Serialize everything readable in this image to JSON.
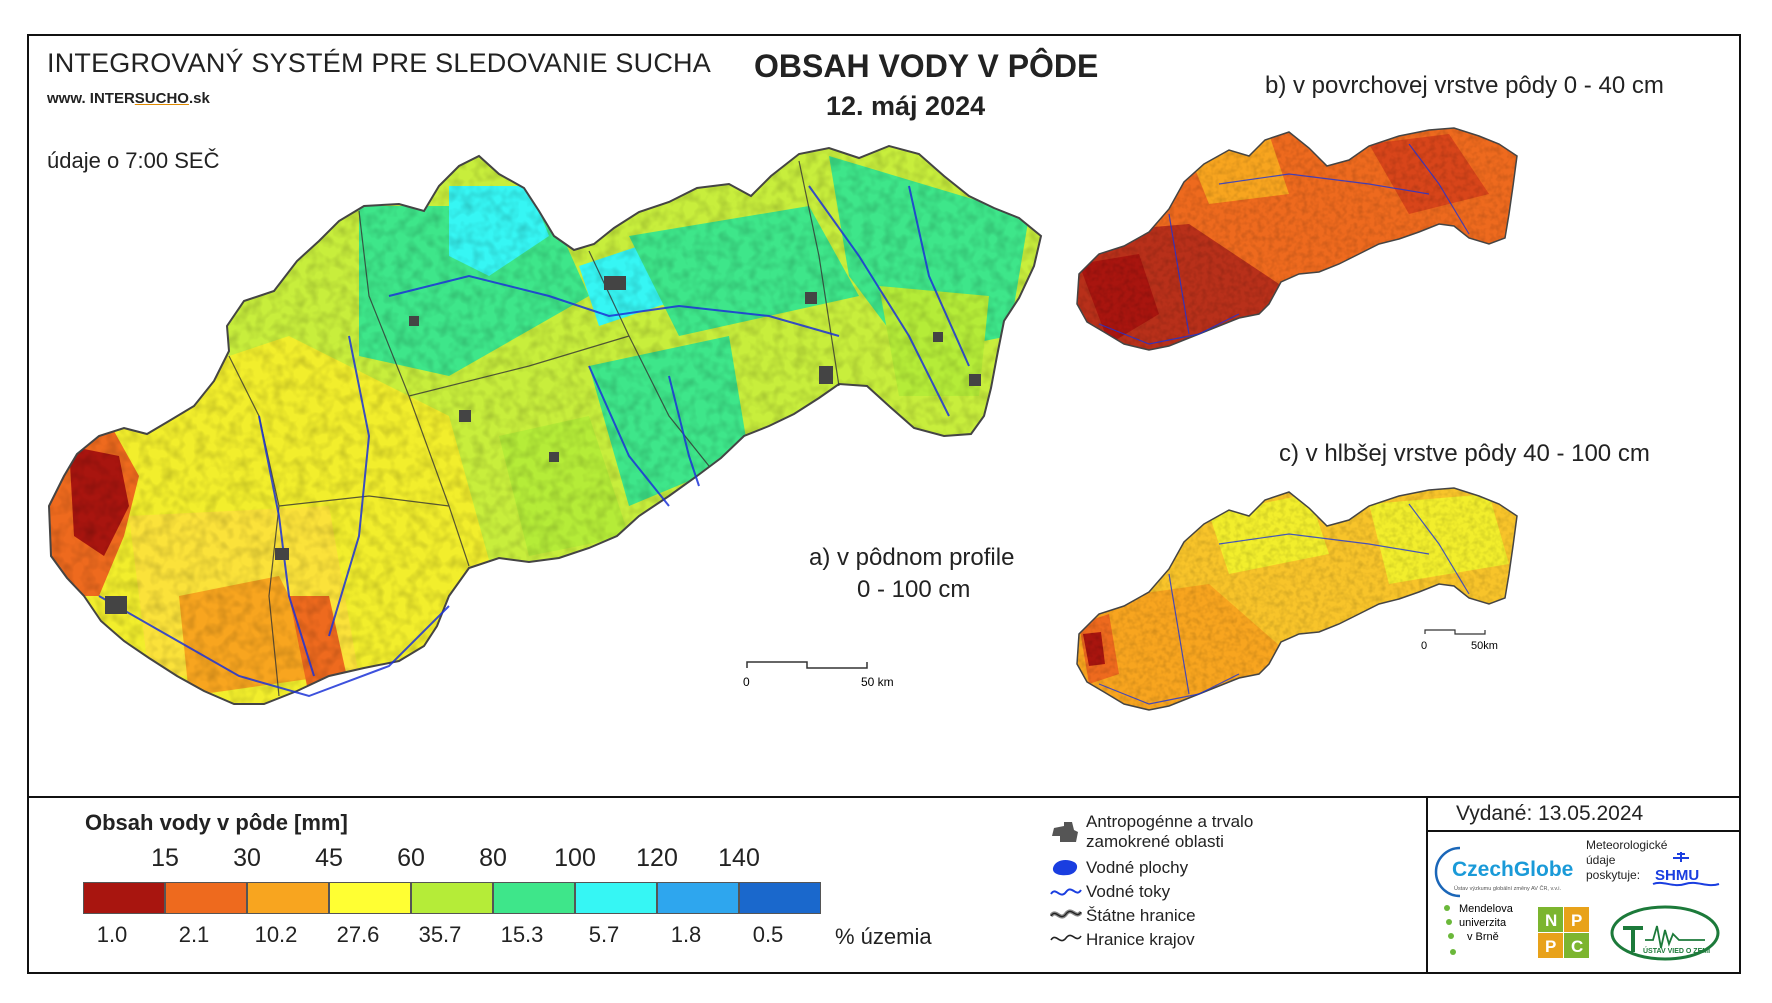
{
  "header": {
    "system_title": "INTEGROVANÝ SYSTÉM PRE SLEDOVANIE SUCHA",
    "website_prefix": "www. INTER",
    "website_mid": "SUCHO",
    "website_suffix": ".sk",
    "data_time": "údaje o 7:00 SEČ",
    "map_title": "OBSAH VODY V PÔDE",
    "map_date": "12. máj 2024"
  },
  "maps": {
    "a_label_line1": "a) v pôdnom profile",
    "a_label_line2": "0 - 100 cm",
    "b_label": "b) v povrchovej vrstve pôdy 0 - 40 cm",
    "c_label": "c) v hlbšej vrstve pôdy 40 - 100 cm",
    "scale_main_start": "0",
    "scale_main_end": "50 km",
    "scale_small_start": "0",
    "scale_small_end": "50km"
  },
  "legend": {
    "title": "Obsah vody v pôde  [mm]",
    "thresholds": [
      "15",
      "30",
      "45",
      "60",
      "80",
      "100",
      "120",
      "140"
    ],
    "classes": [
      {
        "color": "#a8150f",
        "percent": "1.0"
      },
      {
        "color": "#ee6a1e",
        "percent": "2.1"
      },
      {
        "color": "#f8a51f",
        "percent": "10.2"
      },
      {
        "color": "#ffff33",
        "percent": "27.6"
      },
      {
        "color": "#b5ec38",
        "percent": "35.7"
      },
      {
        "color": "#3ee68a",
        "percent": "15.3"
      },
      {
        "color": "#36f6f4",
        "percent": "5.7"
      },
      {
        "color": "#2ea6ee",
        "percent": "1.8"
      },
      {
        "color": "#1a68cc",
        "percent": "0.5"
      }
    ],
    "percent_label": "% územia"
  },
  "map_legend": {
    "anthropogenic_line1": "Antropogénne a trvalo",
    "anthropogenic_line2": "zamokrené oblasti",
    "water_bodies": "Vodné plochy",
    "water_streams": "Vodné toky",
    "state_borders": "Štátne hranice",
    "region_borders": "Hranice krajov"
  },
  "issued": {
    "label": "Vydané: 13.05.2024",
    "czechglobe": "CzechGlobe",
    "czechglobe_sub": "Ústav výzkumu globální změny AV ČR, v.v.i.",
    "meteo_line1": "Meteorologické",
    "meteo_line2": "údaje",
    "meteo_line3": "poskytuje:",
    "shmu": "SHMU",
    "mendel_line1": "Mendelova",
    "mendel_line2": "univerzita",
    "mendel_line3": "v Brně",
    "nppc_n": "N",
    "nppc_p1": "P",
    "nppc_p2": "P",
    "nppc_c": "C",
    "uvz": "ÚSTAV VIED O ZEMI"
  }
}
